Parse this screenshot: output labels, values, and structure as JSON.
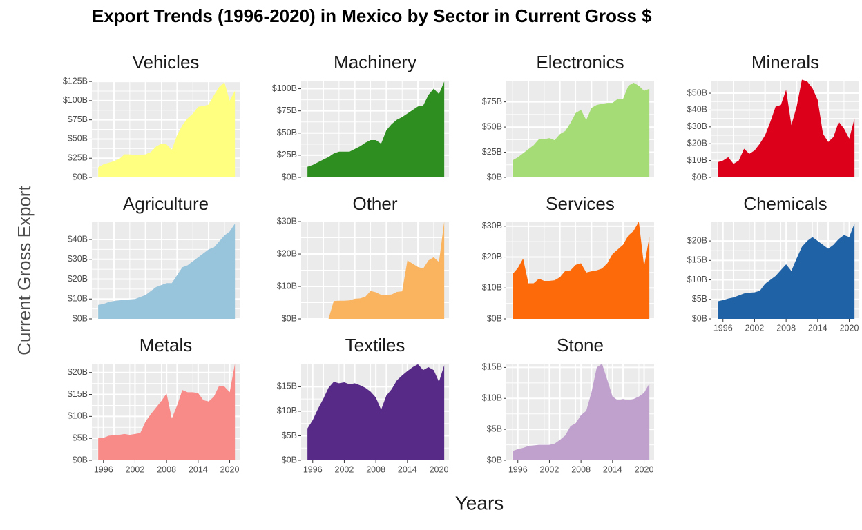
{
  "title": "Export Trends (1996-2020) in Mexico by Sector in Current Gross $",
  "xlabel": "Years",
  "ylabel": "Current Gross Export",
  "chart_data": [
    {
      "type": "area",
      "title": "Vehicles",
      "color": "#ffff80",
      "grid": true,
      "xlim": [
        1993.8,
        2021.9
      ],
      "ylim": [
        0,
        126
      ],
      "yticks": [
        {
          "value": 0,
          "label": "$0B"
        },
        {
          "value": 25,
          "label": "$25B"
        },
        {
          "value": 50,
          "label": "$50B"
        },
        {
          "value": 75,
          "label": "$75B"
        },
        {
          "value": 100,
          "label": "$100B"
        },
        {
          "value": 125,
          "label": "$125B"
        }
      ],
      "x": [
        1995,
        1996,
        1997,
        1998,
        1999,
        2000,
        2001,
        2002,
        2003,
        2004,
        2005,
        2006,
        2007,
        2008,
        2009,
        2010,
        2011,
        2012,
        2013,
        2014,
        2015,
        2016,
        2017,
        2018,
        2019,
        2020,
        2021
      ],
      "values": [
        13,
        17,
        19,
        21,
        24,
        30,
        30,
        29,
        29,
        30,
        33,
        40,
        44,
        43,
        36,
        55,
        68,
        77,
        83,
        92,
        93,
        95,
        107,
        118,
        124,
        100,
        113
      ]
    },
    {
      "type": "area",
      "title": "Machinery",
      "color": "#2e8f20",
      "grid": true,
      "xlim": [
        1993.8,
        2021.9
      ],
      "ylim": [
        0,
        109
      ],
      "yticks": [
        {
          "value": 0,
          "label": "$0B"
        },
        {
          "value": 25,
          "label": "$25B"
        },
        {
          "value": 50,
          "label": "$50B"
        },
        {
          "value": 75,
          "label": "$75B"
        },
        {
          "value": 100,
          "label": "$100B"
        }
      ],
      "x": [
        1995,
        1996,
        1997,
        1998,
        1999,
        2000,
        2001,
        2002,
        2003,
        2004,
        2005,
        2006,
        2007,
        2008,
        2009,
        2010,
        2011,
        2012,
        2013,
        2014,
        2015,
        2016,
        2017,
        2018,
        2019,
        2020,
        2021
      ],
      "values": [
        12,
        14,
        17,
        20,
        23,
        27,
        29,
        29,
        29,
        32,
        35,
        39,
        42,
        42,
        38,
        53,
        60,
        65,
        68,
        72,
        76,
        80,
        81,
        93,
        100,
        94,
        108
      ]
    },
    {
      "type": "area",
      "title": "Electronics",
      "color": "#a6dc76",
      "grid": true,
      "xlim": [
        1993.8,
        2021.9
      ],
      "ylim": [
        0,
        96
      ],
      "yticks": [
        {
          "value": 0,
          "label": "$0B"
        },
        {
          "value": 25,
          "label": "$25B"
        },
        {
          "value": 50,
          "label": "$50B"
        },
        {
          "value": 75,
          "label": "$75B"
        }
      ],
      "x": [
        1995,
        1996,
        1997,
        1998,
        1999,
        2000,
        2001,
        2002,
        2003,
        2004,
        2005,
        2006,
        2007,
        2008,
        2009,
        2010,
        2011,
        2012,
        2013,
        2014,
        2015,
        2016,
        2017,
        2018,
        2019,
        2020,
        2021
      ],
      "values": [
        17,
        20,
        24,
        28,
        32,
        38,
        38,
        39,
        37,
        43,
        46,
        54,
        64,
        67,
        57,
        69,
        72,
        73,
        74,
        74,
        78,
        78,
        91,
        94,
        91,
        86,
        88
      ]
    },
    {
      "type": "area",
      "title": "Minerals",
      "color": "#dc001a",
      "grid": true,
      "xlim": [
        1993.8,
        2021.9
      ],
      "ylim": [
        0,
        57.4
      ],
      "yticks": [
        {
          "value": 0,
          "label": "$0B"
        },
        {
          "value": 10,
          "label": "$10B"
        },
        {
          "value": 20,
          "label": "$20B"
        },
        {
          "value": 30,
          "label": "$30B"
        },
        {
          "value": 40,
          "label": "$40B"
        },
        {
          "value": 50,
          "label": "$50B"
        }
      ],
      "x": [
        1995,
        1996,
        1997,
        1998,
        1999,
        2000,
        2001,
        2002,
        2003,
        2004,
        2005,
        2006,
        2007,
        2008,
        2009,
        2010,
        2011,
        2012,
        2013,
        2014,
        2015,
        2016,
        2017,
        2018,
        2019,
        2020,
        2021
      ],
      "values": [
        9,
        10,
        12,
        8,
        10,
        17,
        14,
        16,
        20,
        25,
        33,
        42,
        43,
        52,
        31,
        42,
        58,
        57,
        53,
        46,
        26,
        21,
        24,
        33,
        29,
        23,
        35
      ]
    },
    {
      "type": "area",
      "title": "Agriculture",
      "color": "#98c4dc",
      "grid": true,
      "xlim": [
        1993.8,
        2021.9
      ],
      "ylim": [
        0,
        48.7
      ],
      "yticks": [
        {
          "value": 0,
          "label": "$0B"
        },
        {
          "value": 10,
          "label": "$10B"
        },
        {
          "value": 20,
          "label": "$20B"
        },
        {
          "value": 30,
          "label": "$30B"
        },
        {
          "value": 40,
          "label": "$40B"
        }
      ],
      "x": [
        1995,
        1996,
        1997,
        1998,
        1999,
        2000,
        2001,
        2002,
        2003,
        2004,
        2005,
        2006,
        2007,
        2008,
        2009,
        2010,
        2011,
        2012,
        2013,
        2014,
        2015,
        2016,
        2017,
        2018,
        2019,
        2020,
        2021
      ],
      "values": [
        7,
        7.5,
        8.5,
        9,
        9.3,
        9.6,
        9.8,
        10,
        11,
        12,
        14,
        16,
        17,
        18,
        18,
        22,
        26,
        27,
        29,
        31,
        33,
        35,
        36,
        39,
        42,
        44,
        48
      ]
    },
    {
      "type": "area",
      "title": "Other",
      "color": "#fab460",
      "grid": true,
      "xlim": [
        1993.8,
        2021.9
      ],
      "ylim": [
        0,
        29.8
      ],
      "yticks": [
        {
          "value": 0,
          "label": "$0B"
        },
        {
          "value": 10,
          "label": "$10B"
        },
        {
          "value": 20,
          "label": "$20B"
        },
        {
          "value": 30,
          "label": "$30B"
        }
      ],
      "x": [
        1995,
        1996,
        1997,
        1998,
        1999,
        2000,
        2001,
        2002,
        2003,
        2004,
        2005,
        2006,
        2007,
        2008,
        2009,
        2010,
        2011,
        2012,
        2013,
        2014,
        2015,
        2016,
        2017,
        2018,
        2019,
        2020,
        2021
      ],
      "values": [
        null,
        null,
        null,
        null,
        0,
        5.5,
        5.6,
        5.6,
        5.7,
        6.2,
        6.3,
        6.8,
        8.6,
        8.2,
        7.4,
        7.4,
        7.5,
        8.3,
        8.5,
        18,
        17,
        16,
        15.5,
        18,
        19,
        17.5,
        30
      ]
    },
    {
      "type": "area",
      "title": "Services",
      "color": "#fc6a0a",
      "grid": true,
      "xlim": [
        1993.8,
        2021.9
      ],
      "ylim": [
        0,
        31.3
      ],
      "yticks": [
        {
          "value": 0,
          "label": "$0B"
        },
        {
          "value": 10,
          "label": "$10B"
        },
        {
          "value": 20,
          "label": "$20B"
        },
        {
          "value": 30,
          "label": "$30B"
        }
      ],
      "x": [
        1995,
        1996,
        1997,
        1998,
        1999,
        2000,
        2001,
        2002,
        2003,
        2004,
        2005,
        2006,
        2007,
        2008,
        2009,
        2010,
        2011,
        2012,
        2013,
        2014,
        2015,
        2016,
        2017,
        2018,
        2019,
        2020,
        2021
      ],
      "values": [
        14.5,
        16.5,
        19.5,
        11.5,
        11.5,
        13,
        12.3,
        12.3,
        12.5,
        13.5,
        15.5,
        15.7,
        17.5,
        18,
        15,
        15.4,
        15.7,
        16.3,
        18,
        21,
        22.5,
        24,
        27,
        28.5,
        31.5,
        17,
        26.5
      ]
    },
    {
      "type": "area",
      "title": "Chemicals",
      "color": "#1f62a6",
      "grid": true,
      "xlim": [
        1993.8,
        2021.9
      ],
      "ylim": [
        0,
        24.8
      ],
      "yticks": [
        {
          "value": 0,
          "label": "$0B"
        },
        {
          "value": 5,
          "label": "$5B"
        },
        {
          "value": 10,
          "label": "$10B"
        },
        {
          "value": 15,
          "label": "$15B"
        },
        {
          "value": 20,
          "label": "$20B"
        }
      ],
      "xticks": [
        1996,
        2002,
        2008,
        2014,
        2020
      ],
      "x": [
        1995,
        1996,
        1997,
        1998,
        1999,
        2000,
        2001,
        2002,
        2003,
        2004,
        2005,
        2006,
        2007,
        2008,
        2009,
        2010,
        2011,
        2012,
        2013,
        2014,
        2015,
        2016,
        2017,
        2018,
        2019,
        2020,
        2021
      ],
      "values": [
        4.5,
        4.8,
        5.2,
        5.5,
        6,
        6.5,
        6.7,
        6.8,
        7.2,
        9,
        10,
        11,
        12.5,
        14,
        12.3,
        15.5,
        18.5,
        20,
        21,
        20,
        19,
        18,
        19,
        20.5,
        21.5,
        21,
        24.5
      ]
    },
    {
      "type": "area",
      "title": "Metals",
      "color": "#f88a88",
      "grid": true,
      "xlim": [
        1993.8,
        2021.9
      ],
      "ylim": [
        0,
        22
      ],
      "yticks": [
        {
          "value": 0,
          "label": "$0B"
        },
        {
          "value": 5,
          "label": "$5B"
        },
        {
          "value": 10,
          "label": "$10B"
        },
        {
          "value": 15,
          "label": "$15B"
        },
        {
          "value": 20,
          "label": "$20B"
        }
      ],
      "xticks": [
        1996,
        2002,
        2008,
        2014,
        2020
      ],
      "x": [
        1995,
        1996,
        1997,
        1998,
        1999,
        2000,
        2001,
        2002,
        2003,
        2004,
        2005,
        2006,
        2007,
        2008,
        2009,
        2010,
        2011,
        2012,
        2013,
        2014,
        2015,
        2016,
        2017,
        2018,
        2019,
        2020,
        2021
      ],
      "values": [
        5,
        5.1,
        5.6,
        5.7,
        5.8,
        6,
        5.8,
        6,
        6.2,
        8.8,
        10.5,
        12,
        13.5,
        15.2,
        9.5,
        12.5,
        16,
        15.5,
        15.5,
        15.3,
        13.7,
        13.4,
        14.5,
        17,
        16.8,
        15.5,
        22
      ]
    },
    {
      "type": "area",
      "title": "Textiles",
      "color": "#572a88",
      "grid": true,
      "xlim": [
        1993.8,
        2021.9
      ],
      "ylim": [
        0,
        19.7
      ],
      "yticks": [
        {
          "value": 0,
          "label": "$0B"
        },
        {
          "value": 5,
          "label": "$5B"
        },
        {
          "value": 10,
          "label": "$10B"
        },
        {
          "value": 15,
          "label": "$15B"
        }
      ],
      "xticks": [
        1996,
        2002,
        2008,
        2014,
        2020
      ],
      "x": [
        1995,
        1996,
        1997,
        1998,
        1999,
        2000,
        2001,
        2002,
        2003,
        2004,
        2005,
        2006,
        2007,
        2008,
        2009,
        2010,
        2011,
        2012,
        2013,
        2014,
        2015,
        2016,
        2017,
        2018,
        2019,
        2020,
        2021
      ],
      "values": [
        6.5,
        8.2,
        10.5,
        12.5,
        14.8,
        16,
        15.7,
        15.9,
        15.5,
        15.7,
        15.3,
        14.8,
        14,
        12.8,
        10.3,
        13.2,
        14.5,
        16.3,
        17.3,
        18.2,
        19,
        19.6,
        18.4,
        19,
        18.4,
        16,
        19.4
      ]
    },
    {
      "type": "area",
      "title": "Stone",
      "color": "#c0a1ce",
      "grid": true,
      "xlim": [
        1993.8,
        2021.9
      ],
      "ylim": [
        0,
        15.6
      ],
      "yticks": [
        {
          "value": 0,
          "label": "$0B"
        },
        {
          "value": 5,
          "label": "$5B"
        },
        {
          "value": 10,
          "label": "$10B"
        },
        {
          "value": 15,
          "label": "$15B"
        }
      ],
      "xticks": [
        1996,
        2002,
        2008,
        2014,
        2020
      ],
      "x": [
        1995,
        1996,
        1997,
        1998,
        1999,
        2000,
        2001,
        2002,
        2003,
        2004,
        2005,
        2006,
        2007,
        2008,
        2009,
        2010,
        2011,
        2012,
        2013,
        2014,
        2015,
        2016,
        2017,
        2018,
        2019,
        2020,
        2021
      ],
      "values": [
        1.5,
        1.8,
        2,
        2.3,
        2.4,
        2.5,
        2.5,
        2.5,
        2.7,
        3.3,
        4,
        5.5,
        6,
        7.3,
        8,
        11,
        15,
        15.6,
        13,
        10.3,
        9.7,
        9.9,
        9.7,
        9.9,
        10.3,
        10.9,
        12.4
      ]
    }
  ]
}
